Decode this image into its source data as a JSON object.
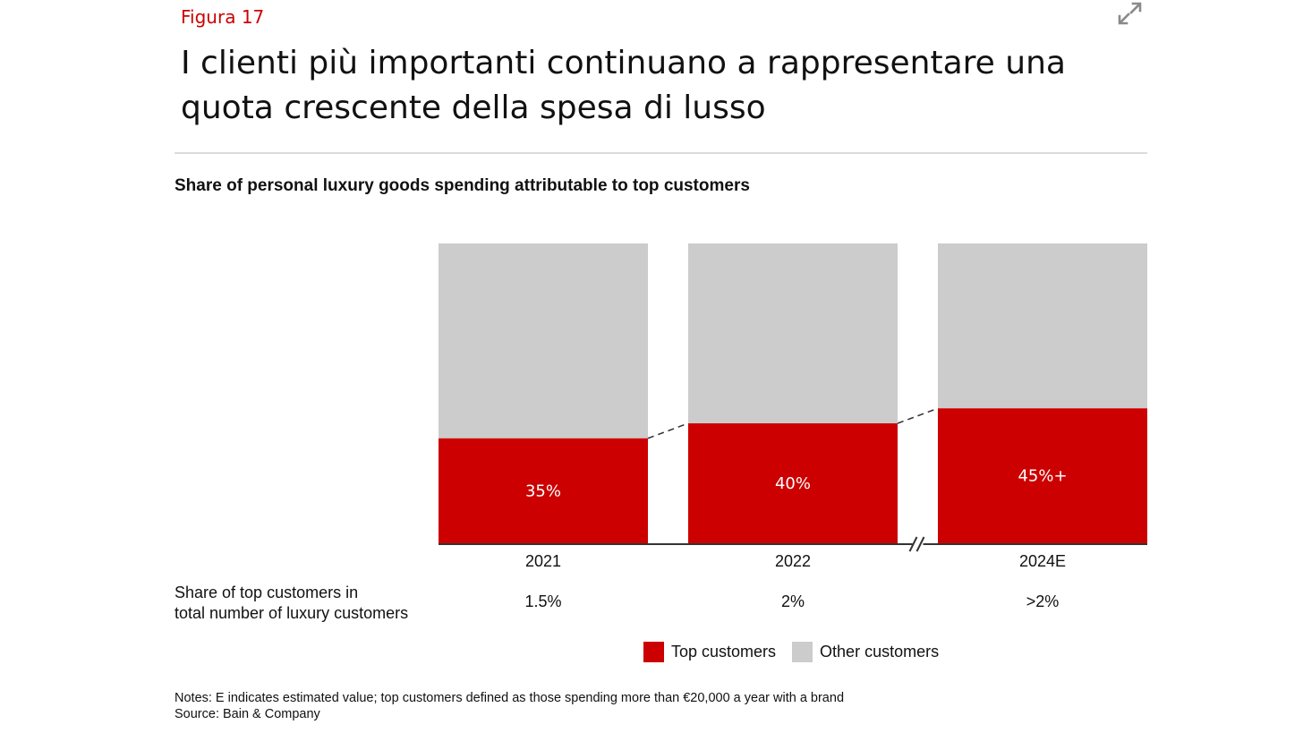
{
  "header": {
    "figure_label": "Figura 17",
    "title": "I clienti più importanti continuano a rappresentare una quota crescente della spesa di lusso",
    "expand_icon": "expand-arrows-icon"
  },
  "chart_data": {
    "type": "bar",
    "stacked": true,
    "percent_stacked": true,
    "title": "Share of personal luxury goods spending attributable to top customers",
    "categories": [
      "2021",
      "2022",
      "2024E"
    ],
    "series": [
      {
        "name": "Top customers",
        "values": [
          35,
          40,
          45
        ],
        "labels": [
          "35%",
          "40%",
          "45%+"
        ],
        "color": "#cc0000"
      },
      {
        "name": "Other customers",
        "values": [
          65,
          60,
          55
        ],
        "color": "#cccccc"
      }
    ],
    "ylim": [
      0,
      100
    ],
    "axis_break_between": [
      "2022",
      "2024E"
    ],
    "connector_lines": "dashed",
    "legend_position": "bottom"
  },
  "share_row": {
    "label_line1": "Share of top customers in",
    "label_line2": "total number of luxury customers",
    "values": [
      "1.5%",
      "2%",
      ">2%"
    ]
  },
  "legend": [
    {
      "label": "Top customers",
      "color": "#cc0000"
    },
    {
      "label": "Other customers",
      "color": "#cccccc"
    }
  ],
  "notes": {
    "notes": "Notes: E indicates estimated value; top customers defined as those spending more than €20,000 a year with a brand",
    "source": "Source: Bain & Company"
  }
}
